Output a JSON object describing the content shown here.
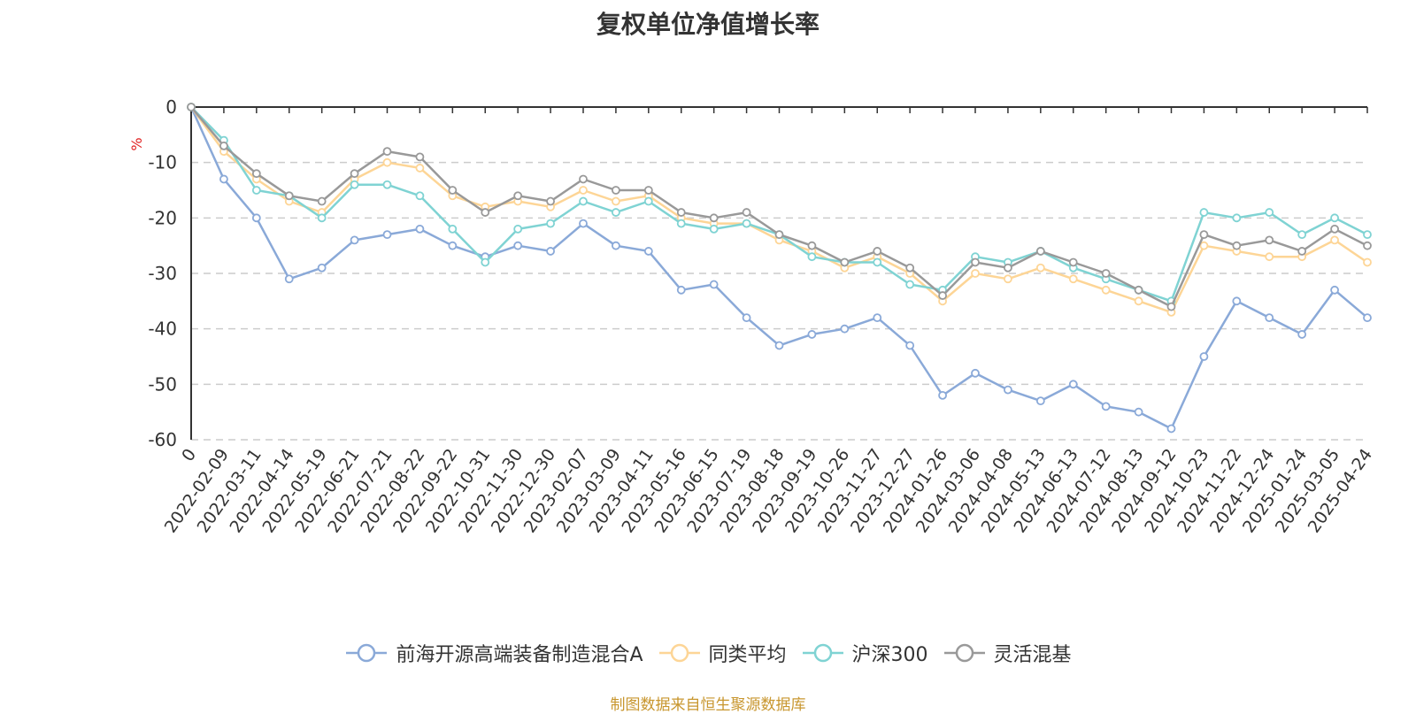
{
  "chart_data": {
    "type": "line",
    "title": "复权单位净值增长率",
    "ylabel": "%",
    "ylim": [
      -60,
      0
    ],
    "yticks": [
      0,
      -10,
      -20,
      -30,
      -40,
      -50,
      -60
    ],
    "grid": true,
    "legend_position": "bottom",
    "xlabels": [
      "0",
      "2022-02-09",
      "2022-03-11",
      "2022-04-14",
      "2022-05-19",
      "2022-06-21",
      "2022-07-21",
      "2022-08-22",
      "2022-09-22",
      "2022-10-31",
      "2022-11-30",
      "2022-12-30",
      "2023-02-07",
      "2023-03-09",
      "2023-04-11",
      "2023-05-16",
      "2023-06-15",
      "2023-07-19",
      "2023-08-18",
      "2023-09-19",
      "2023-10-26",
      "2023-11-27",
      "2023-12-27",
      "2024-01-26",
      "2024-03-06",
      "2024-04-08",
      "2024-05-13",
      "2024-06-13",
      "2024-07-12",
      "2024-08-13",
      "2024-09-12",
      "2024-10-23",
      "2024-11-22",
      "2024-12-24",
      "2025-01-24",
      "2025-03-05",
      "2025-04-24"
    ],
    "x": [
      "0",
      "2022-02-09",
      "2022-03-11",
      "2022-04-14",
      "2022-05-19",
      "2022-06-21",
      "2022-07-21",
      "2022-08-22",
      "2022-09-22",
      "2022-10-31",
      "2022-11-30",
      "2022-12-30",
      "2023-02-07",
      "2023-03-09",
      "2023-04-11",
      "2023-05-16",
      "2023-06-15",
      "2023-07-19",
      "2023-08-18",
      "2023-09-19",
      "2023-10-26",
      "2023-11-27",
      "2023-12-27",
      "2024-01-26",
      "2024-03-06",
      "2024-04-08",
      "2024-05-13",
      "2024-06-13",
      "2024-07-12",
      "2024-08-13",
      "2024-09-12",
      "2024-10-23",
      "2024-11-22",
      "2024-12-24",
      "2025-01-24",
      "2025-03-05",
      "2025-04-24"
    ],
    "series": [
      {
        "name": "前海开源高端装备制造混合A",
        "color": "#8aa9d8",
        "values": [
          0,
          -13,
          -20,
          -31,
          -29,
          -24,
          -23,
          -22,
          -25,
          -27,
          -25,
          -26,
          -21,
          -25,
          -26,
          -33,
          -32,
          -38,
          -43,
          -41,
          -40,
          -38,
          -43,
          -52,
          -48,
          -51,
          -53,
          -50,
          -54,
          -55,
          -58,
          -45,
          -35,
          -38,
          -41,
          -33,
          -38
        ]
      },
      {
        "name": "同类平均",
        "color": "#fdd596",
        "values": [
          0,
          -8,
          -13,
          -17,
          -19,
          -13,
          -10,
          -11,
          -16,
          -18,
          -17,
          -18,
          -15,
          -17,
          -16,
          -20,
          -21,
          -21,
          -24,
          -26,
          -29,
          -27,
          -30,
          -35,
          -30,
          -31,
          -29,
          -31,
          -33,
          -35,
          -37,
          -25,
          -26,
          -27,
          -27,
          -24,
          -28
        ]
      },
      {
        "name": "沪深300",
        "color": "#7fd3d3",
        "values": [
          0,
          -6,
          -15,
          -16,
          -20,
          -14,
          -14,
          -16,
          -22,
          -28,
          -22,
          -21,
          -17,
          -19,
          -17,
          -21,
          -22,
          -21,
          -23,
          -27,
          -28,
          -28,
          -32,
          -33,
          -27,
          -28,
          -26,
          -29,
          -31,
          -33,
          -35,
          -19,
          -20,
          -19,
          -23,
          -20,
          -23
        ]
      },
      {
        "name": "灵活混基",
        "color": "#999999",
        "values": [
          0,
          -7,
          -12,
          -16,
          -17,
          -12,
          -8,
          -9,
          -15,
          -19,
          -16,
          -17,
          -13,
          -15,
          -15,
          -19,
          -20,
          -19,
          -23,
          -25,
          -28,
          -26,
          -29,
          -34,
          -28,
          -29,
          -26,
          -28,
          -30,
          -33,
          -36,
          -23,
          -25,
          -24,
          -26,
          -22,
          -25
        ]
      }
    ]
  },
  "source_note": "制图数据来自恒生聚源数据库"
}
